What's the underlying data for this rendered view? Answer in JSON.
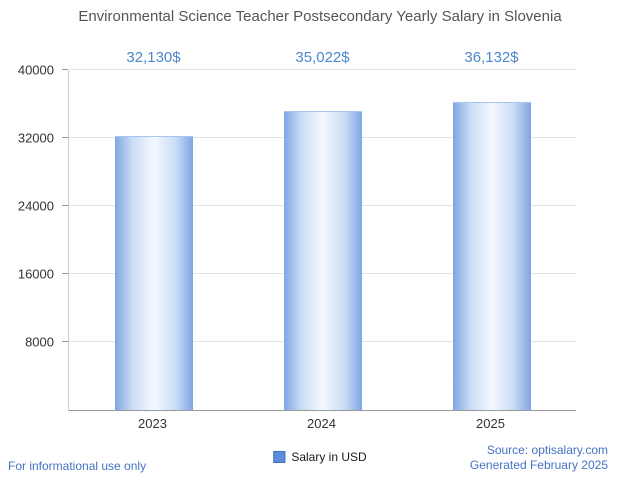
{
  "title": "Environmental Science Teacher Postsecondary Yearly Salary in Slovenia",
  "chart_data": {
    "type": "bar",
    "title": "Environmental Science Teacher Postsecondary Yearly Salary in Slovenia",
    "categories": [
      "2023",
      "2024",
      "2025"
    ],
    "values": [
      32130,
      35022,
      36132
    ],
    "value_labels": [
      "32,130$",
      "35,022$",
      "36,132$"
    ],
    "series_name": "Salary in USD",
    "xlabel": "",
    "ylabel": "",
    "ylim": [
      0,
      40000
    ],
    "yticks": [
      8000,
      16000,
      24000,
      32000,
      40000
    ],
    "grid": true,
    "legend_position": "bottom",
    "bar_edge_color": "#7fa6e3",
    "bar_center_color": "#f4f9ff",
    "value_label_color": "#4e86cc"
  },
  "legend": {
    "label": "Salary in USD"
  },
  "footer": {
    "left": "For informational use only",
    "source": "Source: optisalary.com",
    "generated": "Generated February 2025"
  }
}
